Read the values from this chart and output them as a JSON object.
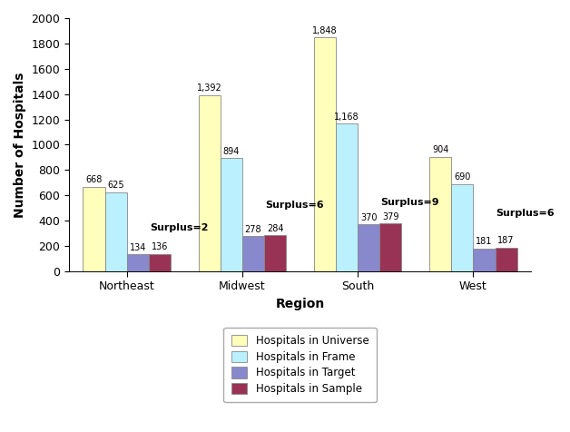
{
  "regions": [
    "Northeast",
    "Midwest",
    "South",
    "West"
  ],
  "series": {
    "Hospitals in Universe": [
      668,
      1392,
      1848,
      904
    ],
    "Hospitals in Frame": [
      625,
      894,
      1168,
      690
    ],
    "Hospitals in Target": [
      134,
      278,
      370,
      181
    ],
    "Hospitals in Sample": [
      136,
      284,
      379,
      187
    ]
  },
  "colors": {
    "Hospitals in Universe": "#ffffbb",
    "Hospitals in Frame": "#bbf0ff",
    "Hospitals in Target": "#8888cc",
    "Hospitals in Sample": "#993355"
  },
  "surplus_labels": [
    "Surplus=2",
    "Surplus=6",
    "Surplus=9",
    "Surplus=6"
  ],
  "xlabel": "Region",
  "ylabel": "Number of Hospitals",
  "ylim": [
    0,
    2000
  ],
  "yticks": [
    0,
    200,
    400,
    600,
    800,
    1000,
    1200,
    1400,
    1600,
    1800,
    2000
  ],
  "legend_order": [
    "Hospitals in Universe",
    "Hospitals in Frame",
    "Hospitals in Target",
    "Hospitals in Sample"
  ],
  "bar_edge_color": "#888888",
  "background_color": "#ffffff",
  "bar_width": 0.19,
  "figsize": [
    6.28,
    4.76
  ],
  "dpi": 100
}
